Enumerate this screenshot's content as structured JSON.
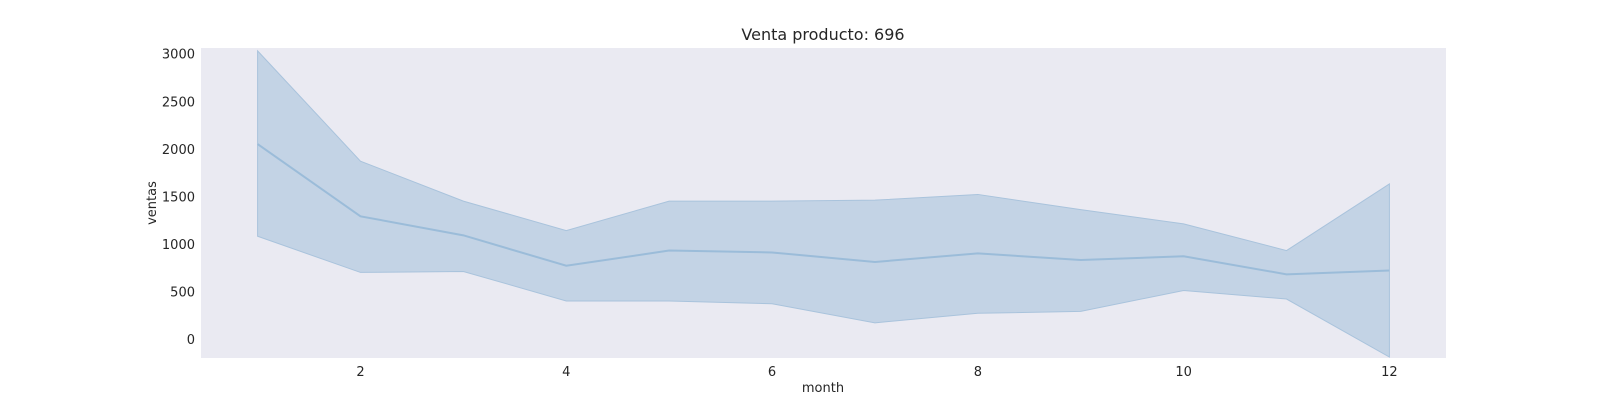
{
  "chart_data": {
    "type": "line",
    "title": "Venta producto: 696",
    "xlabel": "month",
    "ylabel": "ventas",
    "xlim": [
      0.45,
      12.55
    ],
    "ylim": [
      -200,
      3060
    ],
    "xticks": [
      2,
      4,
      6,
      8,
      10,
      12
    ],
    "yticks": [
      0,
      500,
      1000,
      1500,
      2000,
      2500,
      3000
    ],
    "grid": false,
    "x": [
      1,
      2,
      3,
      4,
      5,
      6,
      7,
      8,
      9,
      10,
      11,
      12
    ],
    "series": [
      {
        "values": [
          2050,
          1290,
          1090,
          770,
          930,
          910,
          810,
          900,
          830,
          870,
          680,
          720
        ],
        "band_lower": [
          1080,
          700,
          710,
          400,
          400,
          370,
          170,
          270,
          290,
          510,
          420,
          -190
        ],
        "band_upper": [
          3030,
          1870,
          1450,
          1140,
          1450,
          1450,
          1460,
          1520,
          1360,
          1210,
          930,
          1630
        ]
      }
    ],
    "colors": {
      "plot_background": "#eaeaf2",
      "line": "#9bbcd9",
      "band_fill": "#a9c3dc",
      "band_edge": "#a9c3dc"
    }
  }
}
